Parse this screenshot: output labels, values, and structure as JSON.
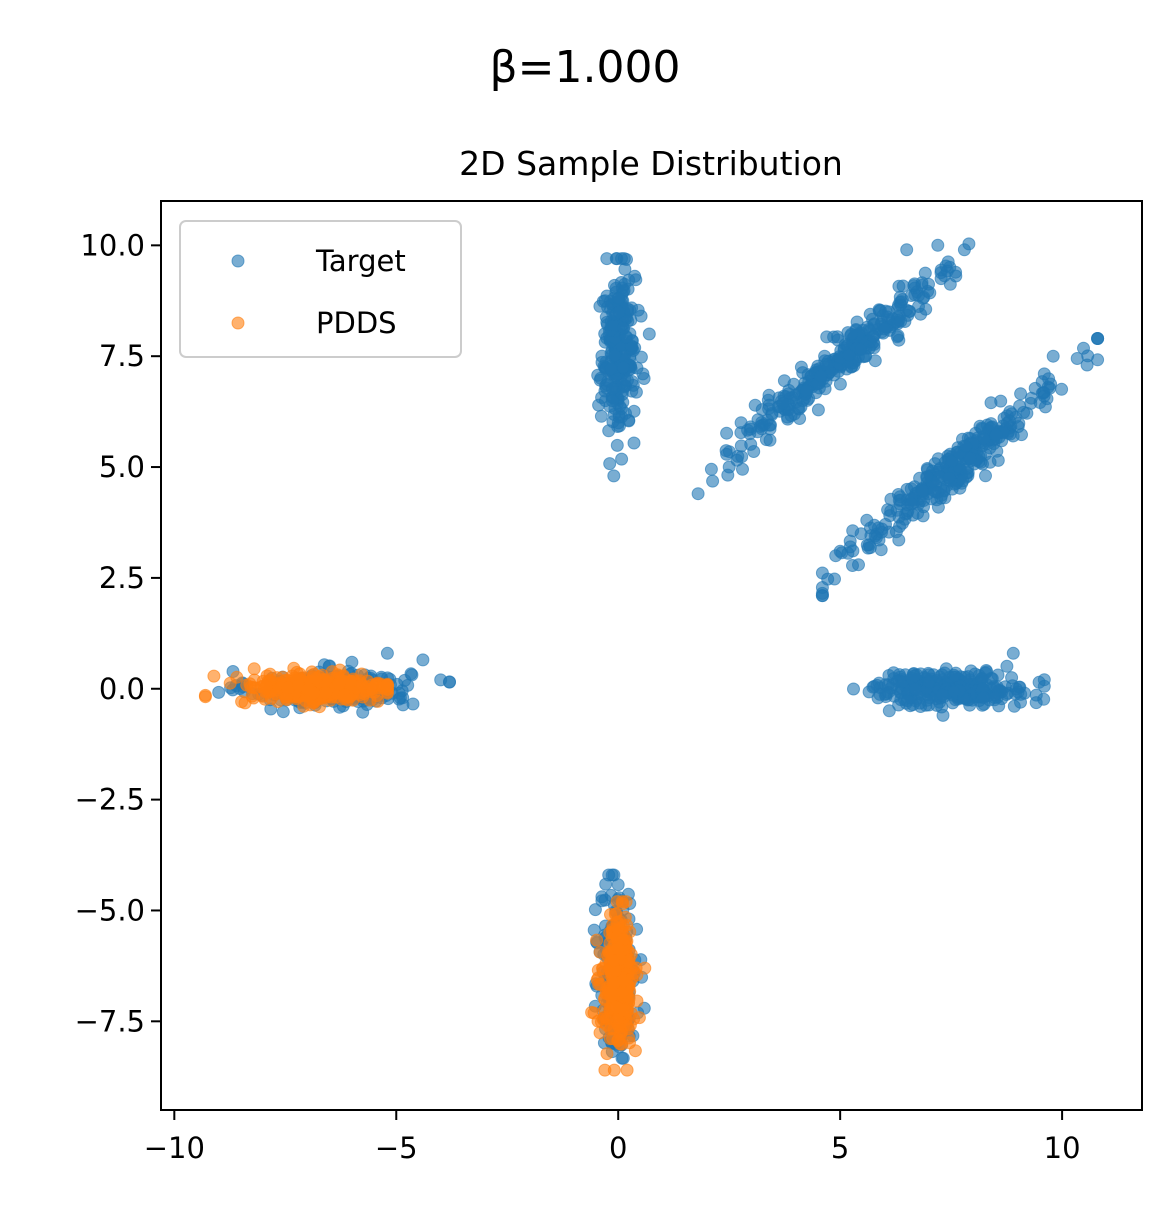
{
  "figure": {
    "suptitle": "β=1.000"
  },
  "chart_data": {
    "type": "scatter",
    "title": "2D Sample Distribution",
    "xlabel": "",
    "ylabel": "",
    "xlim": [
      -10.3,
      11.8
    ],
    "ylim": [
      -9.5,
      11.0
    ],
    "grid": false,
    "legend": {
      "placement": "top-left"
    },
    "xticks": [
      -10,
      -5,
      0,
      5,
      10
    ],
    "xtick_labels": [
      "−10",
      "−5",
      "0",
      "5",
      "10"
    ],
    "yticks": [
      -7.5,
      -5.0,
      -2.5,
      0.0,
      2.5,
      5.0,
      7.5,
      10.0
    ],
    "ytick_labels": [
      "−7.5",
      "−5.0",
      "−2.5",
      "0.0",
      "2.5",
      "5.0",
      "7.5",
      "10.0"
    ],
    "series": [
      {
        "name": "Target",
        "color": "#1f77b4",
        "alpha": 0.6,
        "clusters": [
          {
            "center": [
              -6.5,
              0.0
            ],
            "sx": 0.9,
            "sy": 0.2,
            "rho": 0.0,
            "n": 260,
            "min": [
              -9.0,
              -0.6
            ],
            "max": [
              -3.8,
              0.8
            ]
          },
          {
            "center": [
              0.0,
              -6.4
            ],
            "sx": 0.2,
            "sy": 0.9,
            "rho": 0.0,
            "n": 260,
            "min": [
              -0.6,
              -8.6
            ],
            "max": [
              0.6,
              -4.2
            ]
          },
          {
            "center": [
              7.5,
              0.0
            ],
            "sx": 0.9,
            "sy": 0.2,
            "rho": 0.0,
            "n": 260,
            "min": [
              5.3,
              -0.6
            ],
            "max": [
              9.6,
              0.9
            ]
          },
          {
            "center": [
              0.0,
              7.6
            ],
            "sx": 0.2,
            "sy": 0.9,
            "rho": 0.0,
            "n": 260,
            "min": [
              -0.6,
              4.8
            ],
            "max": [
              0.8,
              9.7
            ]
          },
          {
            "center": [
              5.1,
              7.5
            ],
            "sx": 1.2,
            "sy": 1.0,
            "rho": 0.97,
            "n": 300,
            "min": [
              1.8,
              4.4
            ],
            "max": [
              7.9,
              10.1
            ]
          },
          {
            "center": [
              7.6,
              5.0
            ],
            "sx": 1.2,
            "sy": 1.0,
            "rho": 0.97,
            "n": 300,
            "min": [
              4.6,
              2.1
            ],
            "max": [
              10.8,
              7.9
            ]
          }
        ],
        "points": [
          [
            -4.4,
            0.65
          ],
          [
            -3.8,
            0.15
          ],
          [
            -4.0,
            0.2
          ],
          [
            -5.2,
            0.8
          ],
          [
            1.8,
            4.4
          ],
          [
            2.1,
            4.95
          ],
          [
            2.5,
            5.0
          ],
          [
            2.8,
            4.95
          ],
          [
            4.6,
            2.15
          ],
          [
            4.9,
            3.0
          ],
          [
            5.0,
            3.1
          ],
          [
            5.6,
            3.8
          ],
          [
            10.8,
            7.9
          ],
          [
            9.8,
            7.5
          ],
          [
            9.6,
            7.1
          ],
          [
            7.2,
            10.0
          ],
          [
            7.8,
            9.9
          ],
          [
            6.5,
            9.9
          ],
          [
            0.7,
            8.0
          ],
          [
            -0.1,
            4.8
          ],
          [
            -6.0,
            0.6
          ],
          [
            8.9,
            0.8
          ]
        ]
      },
      {
        "name": "PDDS",
        "color": "#ff7f0e",
        "alpha": 0.6,
        "clusters": [
          {
            "center": [
              -6.8,
              0.0
            ],
            "sx": 0.85,
            "sy": 0.18,
            "rho": 0.0,
            "n": 320,
            "min": [
              -9.3,
              -0.5
            ],
            "max": [
              -5.2,
              0.55
            ]
          },
          {
            "center": [
              0.0,
              -6.6
            ],
            "sx": 0.18,
            "sy": 0.7,
            "rho": 0.0,
            "n": 300,
            "min": [
              -0.6,
              -8.6
            ],
            "max": [
              0.6,
              -4.8
            ]
          }
        ],
        "points": [
          [
            -9.3,
            -0.15
          ],
          [
            -8.2,
            0.45
          ],
          [
            -0.3,
            -8.6
          ],
          [
            0.2,
            -8.6
          ],
          [
            0.6,
            -6.3
          ],
          [
            -0.6,
            -7.3
          ],
          [
            -5.2,
            0.1
          ],
          [
            0.1,
            -4.85
          ]
        ]
      }
    ]
  }
}
